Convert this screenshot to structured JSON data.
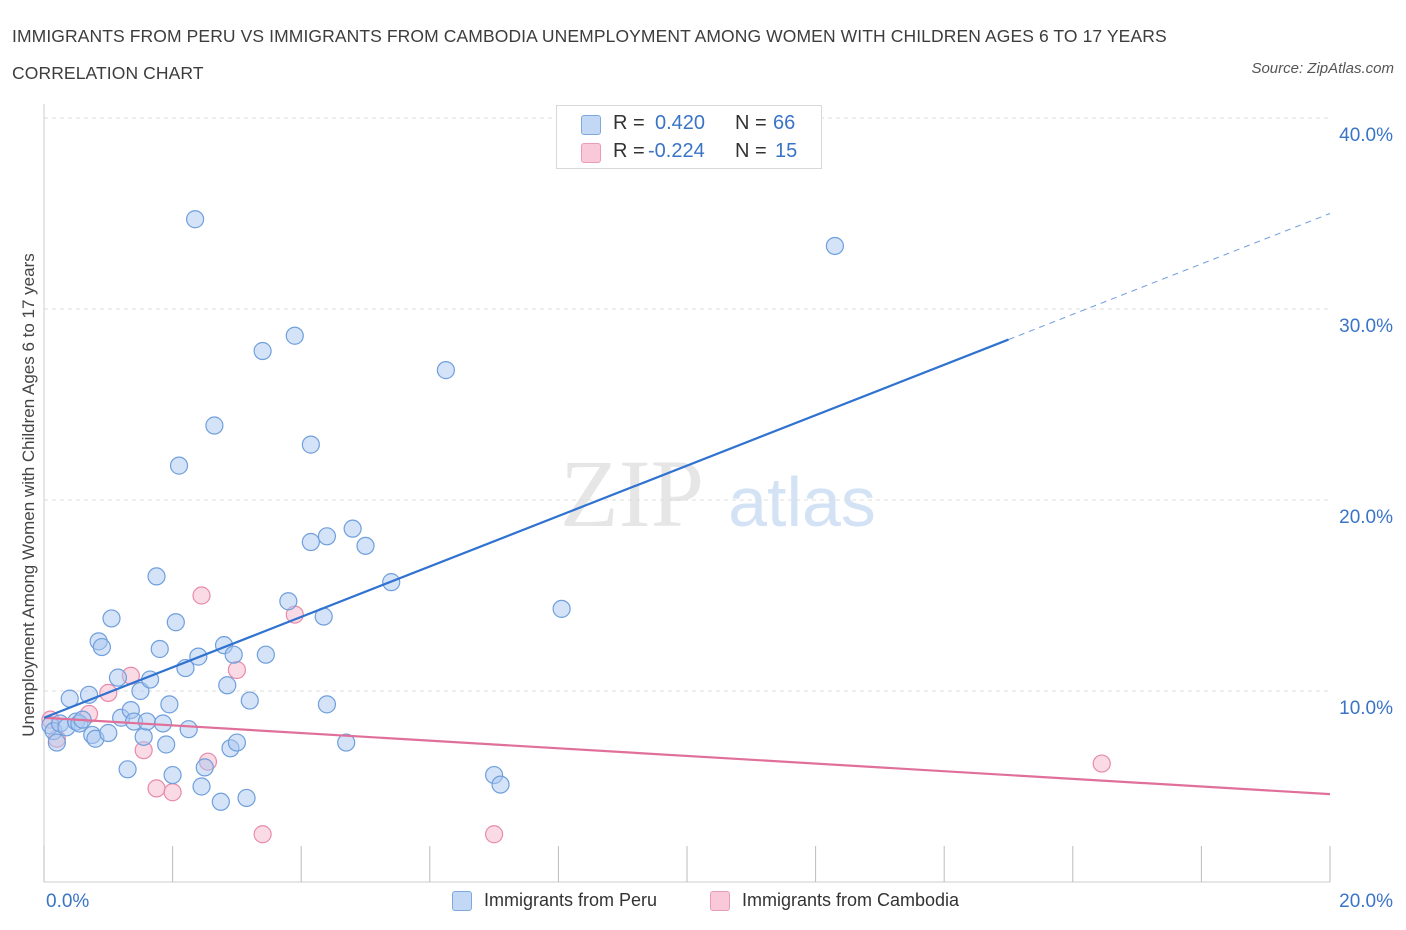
{
  "header": {
    "title": "IMMIGRANTS FROM PERU VS IMMIGRANTS FROM CAMBODIA UNEMPLOYMENT AMONG WOMEN WITH CHILDREN AGES 6 TO 17 YEARS CORRELATION CHART",
    "source": "Source: ZipAtlas.com"
  },
  "legend": {
    "peru": {
      "r_label": "R =",
      "r_value": "0.420",
      "n_label": "N =",
      "n_value": "66"
    },
    "cambodia": {
      "r_label": "R =",
      "r_value": "-0.224",
      "n_label": "N =",
      "n_value": "15"
    }
  },
  "watermark": {
    "zip": "ZIP",
    "atlas": "atlas"
  },
  "colors": {
    "peru_fill": "#aac8f0",
    "peru_stroke": "#6f9fdc",
    "peru_line": "#2f72d0",
    "cambodia_fill": "#f6bcd0",
    "cambodia_stroke": "#e88aab",
    "cambodia_line": "#e0709a",
    "axis_text": "#3a74c6",
    "grid": "#dddddd"
  },
  "chart_data": {
    "type": "scatter",
    "title": "IMMIGRANTS FROM PERU VS IMMIGRANTS FROM CAMBODIA UNEMPLOYMENT AMONG WOMEN WITH CHILDREN AGES 6 TO 17 YEARS CORRELATION CHART",
    "xlabel": "",
    "ylabel": "Unemployment Among Women with Children Ages 6 to 17 years",
    "xlim": [
      0,
      20
    ],
    "ylim": [
      0,
      40
    ],
    "x_tick_labels": [
      "0.0%",
      "20.0%"
    ],
    "y_ticks": [
      10,
      20,
      30,
      40
    ],
    "y_tick_labels": [
      "10.0%",
      "20.0%",
      "30.0%",
      "40.0%"
    ],
    "grid": true,
    "legend_position": "bottom-center",
    "series": [
      {
        "name": "Immigrants from Peru",
        "points": [
          [
            0.1,
            8.2
          ],
          [
            0.15,
            7.9
          ],
          [
            0.2,
            7.3
          ],
          [
            0.25,
            8.3
          ],
          [
            0.35,
            8.1
          ],
          [
            0.4,
            9.6
          ],
          [
            0.5,
            8.4
          ],
          [
            0.55,
            8.3
          ],
          [
            0.6,
            8.5
          ],
          [
            0.7,
            9.8
          ],
          [
            0.75,
            7.7
          ],
          [
            0.8,
            7.5
          ],
          [
            0.85,
            12.6
          ],
          [
            0.9,
            12.3
          ],
          [
            1.0,
            7.8
          ],
          [
            1.05,
            13.8
          ],
          [
            1.15,
            10.7
          ],
          [
            1.2,
            8.6
          ],
          [
            1.3,
            5.9
          ],
          [
            1.35,
            9.0
          ],
          [
            1.4,
            8.4
          ],
          [
            1.5,
            10.0
          ],
          [
            1.55,
            7.6
          ],
          [
            1.6,
            8.4
          ],
          [
            1.65,
            10.6
          ],
          [
            1.75,
            16.0
          ],
          [
            1.8,
            12.2
          ],
          [
            1.85,
            8.3
          ],
          [
            1.9,
            7.2
          ],
          [
            1.95,
            9.3
          ],
          [
            2.0,
            5.6
          ],
          [
            2.05,
            13.6
          ],
          [
            2.1,
            21.8
          ],
          [
            2.2,
            11.2
          ],
          [
            2.25,
            8.0
          ],
          [
            2.35,
            34.7
          ],
          [
            2.4,
            11.8
          ],
          [
            2.45,
            5.0
          ],
          [
            2.5,
            6.0
          ],
          [
            2.65,
            23.9
          ],
          [
            2.75,
            4.2
          ],
          [
            2.8,
            12.4
          ],
          [
            2.85,
            10.3
          ],
          [
            2.9,
            7.0
          ],
          [
            2.95,
            11.9
          ],
          [
            3.0,
            7.3
          ],
          [
            3.15,
            4.4
          ],
          [
            3.2,
            9.5
          ],
          [
            3.4,
            27.8
          ],
          [
            3.45,
            11.9
          ],
          [
            3.8,
            14.7
          ],
          [
            3.9,
            28.6
          ],
          [
            4.15,
            17.8
          ],
          [
            4.15,
            22.9
          ],
          [
            4.35,
            13.9
          ],
          [
            4.4,
            18.1
          ],
          [
            4.4,
            9.3
          ],
          [
            4.7,
            7.3
          ],
          [
            4.8,
            18.5
          ],
          [
            5.0,
            17.6
          ],
          [
            5.4,
            15.7
          ],
          [
            6.25,
            26.8
          ],
          [
            7.0,
            5.6
          ],
          [
            7.1,
            5.1
          ],
          [
            8.05,
            14.3
          ],
          [
            12.3,
            33.3
          ]
        ]
      },
      {
        "name": "Immigrants from Cambodia",
        "points": [
          [
            0.1,
            8.5
          ],
          [
            0.2,
            7.5
          ],
          [
            0.7,
            8.8
          ],
          [
            1.0,
            9.9
          ],
          [
            1.35,
            10.8
          ],
          [
            1.55,
            6.9
          ],
          [
            1.75,
            4.9
          ],
          [
            2.0,
            4.7
          ],
          [
            2.45,
            15.0
          ],
          [
            2.55,
            6.3
          ],
          [
            3.0,
            11.1
          ],
          [
            3.4,
            2.5
          ],
          [
            3.9,
            14.0
          ],
          [
            7.0,
            2.5
          ],
          [
            16.45,
            6.2
          ]
        ]
      }
    ],
    "trendlines": [
      {
        "series": "Immigrants from Peru",
        "solid_from": [
          0,
          8.6
        ],
        "solid_to": [
          15.0,
          28.4
        ],
        "dashed_to": [
          20.0,
          35.0
        ]
      },
      {
        "series": "Immigrants from Cambodia",
        "from": [
          0,
          8.6
        ],
        "to": [
          20.0,
          4.6
        ]
      }
    ]
  }
}
